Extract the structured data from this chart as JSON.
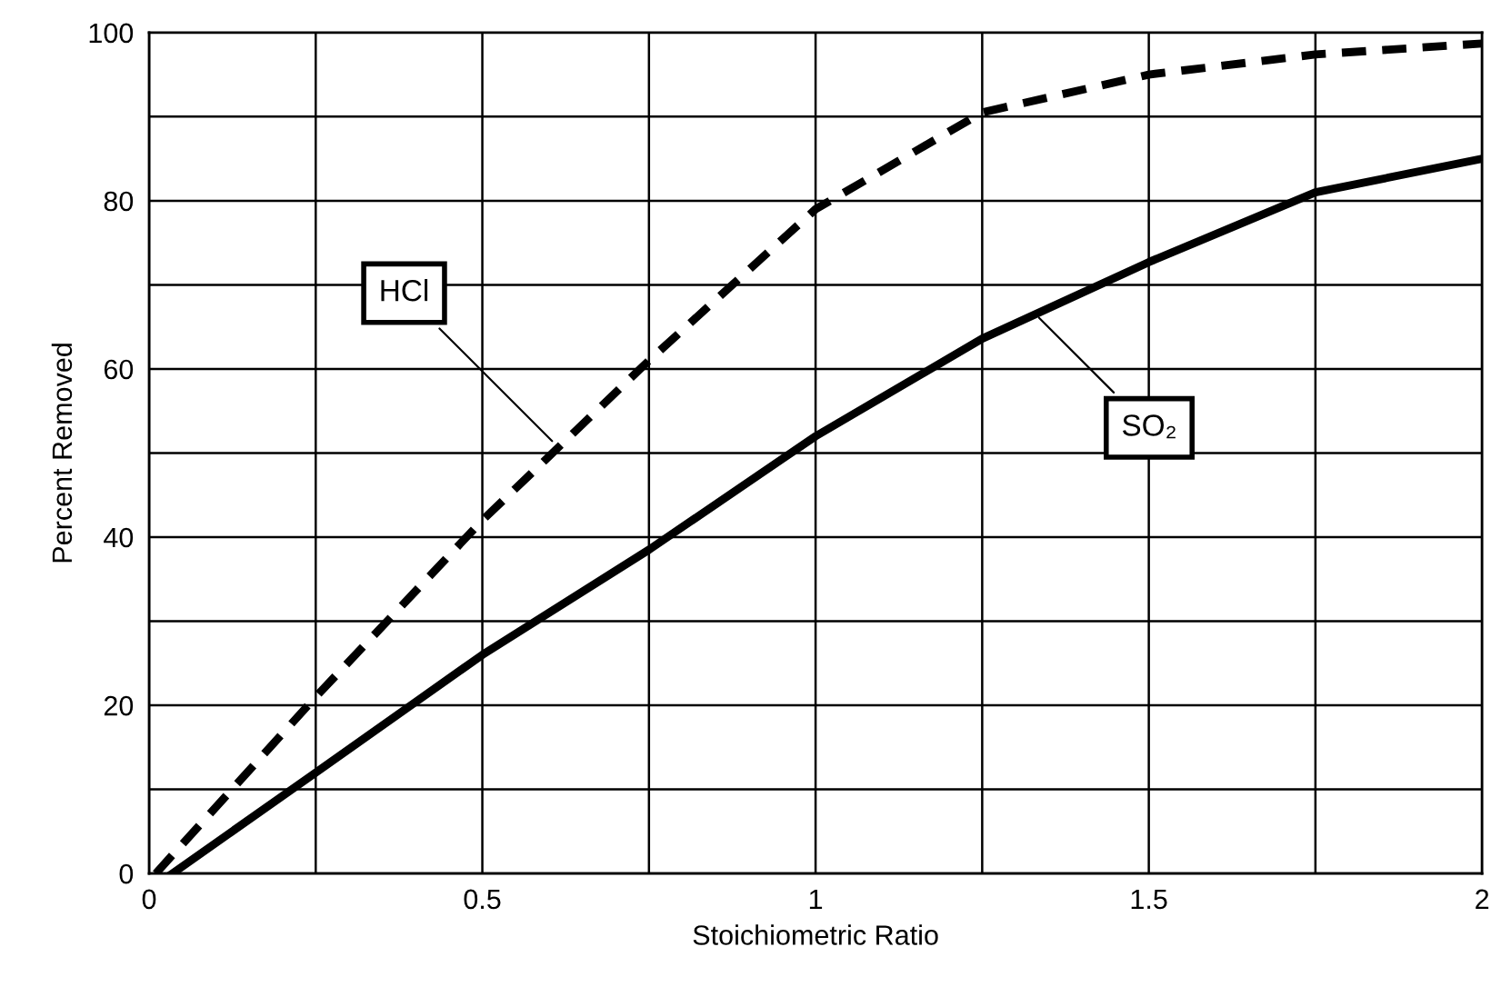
{
  "chart_data": {
    "type": "line",
    "xlabel": "Stoichiometric Ratio",
    "ylabel": "Percent Removed",
    "xlim": [
      0,
      2
    ],
    "ylim": [
      0,
      100
    ],
    "xticks": [
      0,
      {
        "value": 0.25,
        "label": null
      },
      0.5,
      {
        "value": 0.75,
        "label": null
      },
      1,
      {
        "value": 1.25,
        "label": null
      },
      1.5,
      {
        "value": 1.75,
        "label": null
      },
      2
    ],
    "yticks": [
      0,
      {
        "value": 10,
        "label": null
      },
      20,
      {
        "value": 30,
        "label": null
      },
      40,
      {
        "value": 50,
        "label": null
      },
      60,
      {
        "value": 70,
        "label": null
      },
      80,
      {
        "value": 90,
        "label": null
      },
      100
    ],
    "grid": true,
    "legend": false,
    "marker": "none",
    "series": [
      {
        "color": "#000000",
        "line_style": "dashed",
        "x": [
          0.01,
          0.25,
          0.5,
          0.75,
          1.0,
          1.25,
          1.5,
          1.75,
          2.0
        ],
        "values": [
          0,
          21,
          42,
          61,
          79,
          90.5,
          95,
          97.4,
          98.7
        ]
      },
      {
        "color": "#000000",
        "line_style": "solid",
        "x": [
          0.035,
          0.25,
          0.5,
          0.75,
          1.0,
          1.25,
          1.5,
          1.75,
          2.0
        ],
        "values": [
          0,
          12,
          26,
          38.5,
          52,
          63.6,
          72.7,
          81,
          85
        ]
      }
    ],
    "annotations": [
      {
        "text": "HCl",
        "x": 0.61,
        "y": 51
      },
      {
        "text": "SO₂",
        "x": 1.33,
        "y": 66.5
      }
    ]
  }
}
